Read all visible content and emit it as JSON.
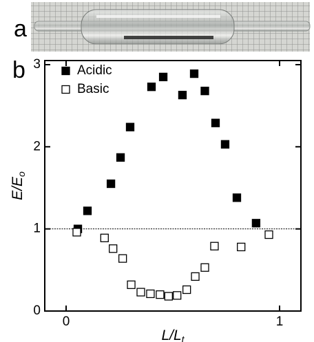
{
  "panel_labels": [
    "a",
    "b"
  ],
  "chart_data": {
    "type": "scatter",
    "xlabel": {
      "text": "L/L",
      "subscript": "t"
    },
    "ylabel": {
      "text": "E/E",
      "subscript": "o"
    },
    "xlim": [
      -0.1,
      1.1
    ],
    "ylim": [
      0,
      3.05
    ],
    "xticks": [
      0,
      1
    ],
    "yticks": [
      0,
      1,
      2,
      3
    ],
    "hline": 1,
    "legend": "upper left",
    "series": [
      {
        "name": "Acidic",
        "color": "#000000",
        "marker": "filled-square",
        "x": [
          0.055,
          0.1,
          0.21,
          0.255,
          0.3,
          0.4,
          0.455,
          0.545,
          0.6,
          0.65,
          0.7,
          0.745,
          0.8,
          0.89
        ],
        "values": [
          1.0,
          1.22,
          1.55,
          1.87,
          2.24,
          2.73,
          2.85,
          2.63,
          2.89,
          2.68,
          2.29,
          2.03,
          1.38,
          1.07
        ]
      },
      {
        "name": "Basic",
        "color": "#000000",
        "marker": "open-square",
        "x": [
          0.05,
          0.18,
          0.22,
          0.265,
          0.305,
          0.35,
          0.395,
          0.44,
          0.48,
          0.52,
          0.565,
          0.605,
          0.65,
          0.695,
          0.82,
          0.95
        ],
        "values": [
          0.96,
          0.89,
          0.76,
          0.64,
          0.32,
          0.23,
          0.21,
          0.2,
          0.18,
          0.19,
          0.26,
          0.42,
          0.53,
          0.79,
          0.78,
          0.93
        ]
      }
    ]
  }
}
